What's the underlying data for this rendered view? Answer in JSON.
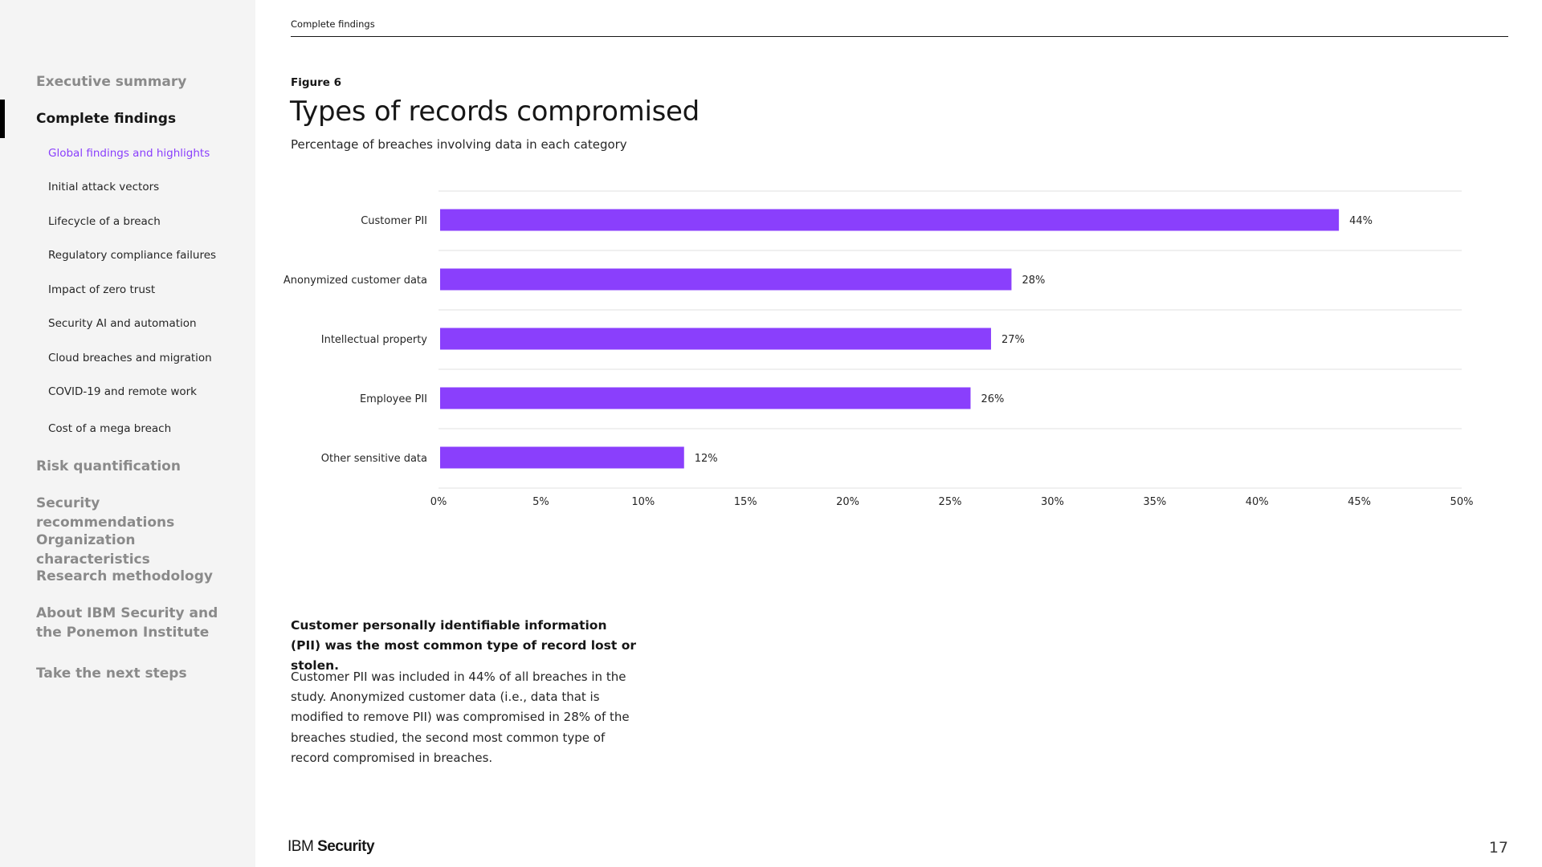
{
  "sidebar": {
    "main_items": [
      {
        "label": "Executive summary"
      },
      {
        "label": "Complete findings"
      },
      {
        "label": "Risk quantification"
      },
      {
        "label": "Security recommendations"
      },
      {
        "label": "Organization characteristics"
      },
      {
        "label": "Research methodology"
      },
      {
        "label": "About IBM Security and the Ponemon Institute"
      },
      {
        "label": "Take the next steps"
      }
    ],
    "sub_items": [
      {
        "label": "Global findings and highlights"
      },
      {
        "label": "Initial attack vectors"
      },
      {
        "label": "Lifecycle of a breach"
      },
      {
        "label": "Regulatory compliance failures"
      },
      {
        "label": "Impact of zero trust"
      },
      {
        "label": "Security AI and automation"
      },
      {
        "label": "Cloud breaches and migration"
      },
      {
        "label": "COVID-19 and remote work"
      },
      {
        "label": "Cost of a mega breach"
      }
    ],
    "active_main": "Complete findings",
    "active_sub": "Global findings and highlights",
    "accent_color": "#8a3ffc"
  },
  "header": {
    "section_label": "Complete findings"
  },
  "figure": {
    "label": "Figure 6"
  },
  "chart_data": {
    "type": "bar",
    "orientation": "horizontal",
    "title": "Types of records compromised",
    "subtitle": "Percentage of breaches involving data in each category",
    "categories": [
      "Customer PII",
      "Anonymized customer data",
      "Intellectual property",
      "Employee PII",
      "Other sensitive data"
    ],
    "values": [
      44,
      28,
      27,
      26,
      12
    ],
    "data_labels": [
      "44%",
      "28%",
      "27%",
      "26%",
      "12%"
    ],
    "xlim": [
      0,
      50
    ],
    "x_ticks": [
      "0%",
      "5%",
      "10%",
      "15%",
      "20%",
      "25%",
      "30%",
      "35%",
      "40%",
      "45%",
      "50%"
    ],
    "bar_color": "#8a3ffc",
    "grid": "horizontal separators between categories"
  },
  "body": {
    "heading": "Customer personally identifiable information (PII) was the most common type of record lost or stolen.",
    "paragraph": "Customer PII was included in 44% of all breaches in the study. Anonymized customer data (i.e., data that is modified to remove PII) was compromised in 28% of the breaches studied, the second most common type of record compromised in breaches."
  },
  "footer": {
    "brand_light": "IBM",
    "brand_bold": "Security",
    "page_number": "17"
  }
}
